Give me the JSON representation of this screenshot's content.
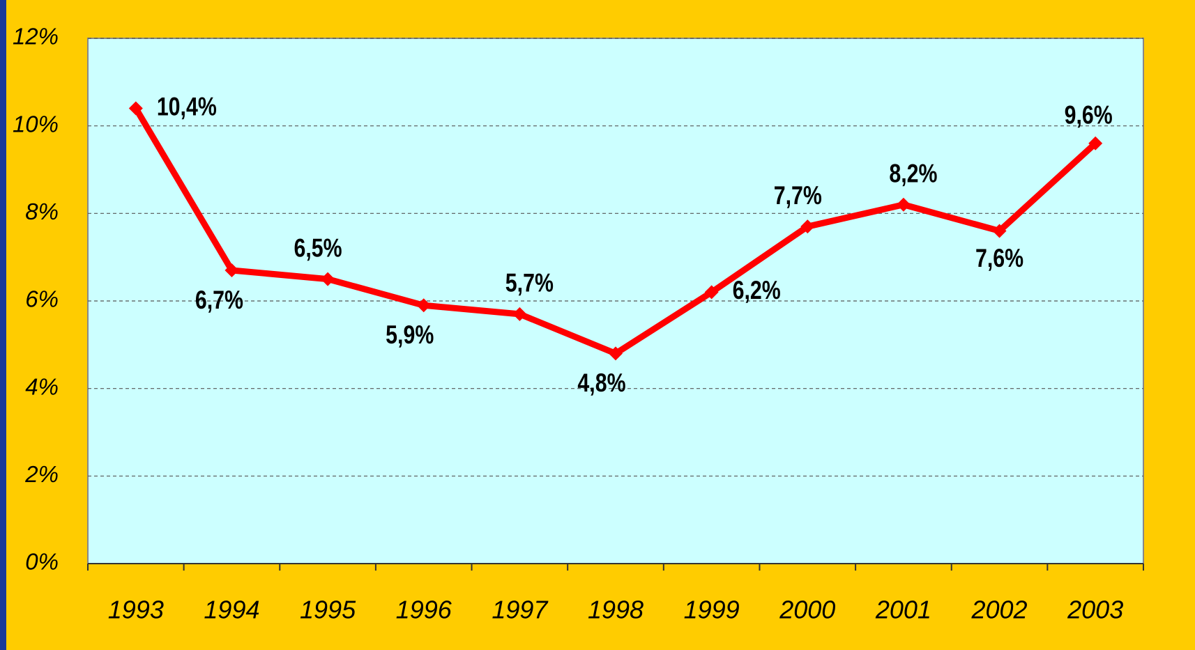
{
  "chart_data": {
    "type": "line",
    "categories": [
      "1993",
      "1994",
      "1995",
      "1996",
      "1997",
      "1998",
      "1999",
      "2000",
      "2001",
      "2002",
      "2003"
    ],
    "series": [
      {
        "name": null,
        "color": "#ff0000",
        "values": [
          10.4,
          6.7,
          6.5,
          5.9,
          5.7,
          4.8,
          6.2,
          7.7,
          8.2,
          7.6,
          9.6
        ],
        "value_labels": [
          "10,4%",
          "6,7%",
          "6,5%",
          "5,9%",
          "5,7%",
          "4,8%",
          "6,2%",
          "7,7%",
          "8,2%",
          "7,6%",
          "9,6%"
        ]
      }
    ],
    "ylim": [
      0,
      12
    ],
    "yticks": [
      {
        "value": 0,
        "label": "0%"
      },
      {
        "value": 2,
        "label": "2%"
      },
      {
        "value": 4,
        "label": "4%"
      },
      {
        "value": 6,
        "label": "6%"
      },
      {
        "value": 8,
        "label": "8%"
      },
      {
        "value": 10,
        "label": "10%"
      },
      {
        "value": 12,
        "label": "12%"
      }
    ],
    "grid": true
  }
}
